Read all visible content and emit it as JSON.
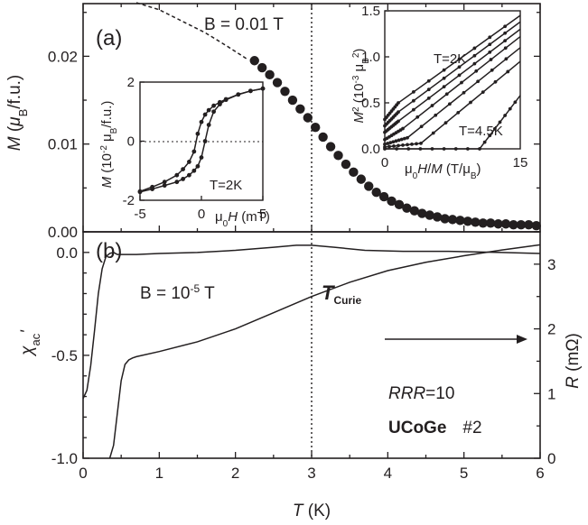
{
  "chart_data": [
    {
      "panel": "a",
      "type": "scatter",
      "panel_label": "(a)",
      "xlabel": "T (K)",
      "ylabel": "M (μB/f.u.)",
      "xlim": [
        0,
        6
      ],
      "ylim": [
        0,
        0.026
      ],
      "annotation": "B = 0.01 T",
      "x_ticks": [
        "0",
        "1",
        "2",
        "3",
        "4",
        "5",
        "6"
      ],
      "y_ticks": [
        "0.00",
        "0.01",
        "0.02"
      ],
      "y_tick_values": [
        0,
        0.01,
        0.02
      ],
      "dashed_extrapolation": {
        "x": [
          0.7,
          1.0,
          1.3,
          1.6,
          1.9,
          2.15
        ],
        "y": [
          0.0261,
          0.0253,
          0.024,
          0.0227,
          0.0211,
          0.0197
        ]
      },
      "x": [
        2.25,
        2.35,
        2.45,
        2.55,
        2.65,
        2.75,
        2.85,
        2.95,
        3.05,
        3.15,
        3.25,
        3.35,
        3.45,
        3.55,
        3.65,
        3.75,
        3.85,
        3.95,
        4.05,
        4.15,
        4.25,
        4.35,
        4.45,
        4.55,
        4.65,
        4.75,
        4.85,
        4.95,
        5.05,
        5.15,
        5.25,
        5.35,
        5.45,
        5.55,
        5.65,
        5.75,
        5.85,
        5.95
      ],
      "y": [
        0.0195,
        0.0187,
        0.0179,
        0.017,
        0.016,
        0.015,
        0.014,
        0.013,
        0.0119,
        0.0108,
        0.0097,
        0.0087,
        0.0077,
        0.0068,
        0.006,
        0.0052,
        0.0045,
        0.004,
        0.0035,
        0.0031,
        0.0027,
        0.0024,
        0.0021,
        0.0019,
        0.0017,
        0.0015,
        0.0014,
        0.0013,
        0.0012,
        0.0011,
        0.001,
        0.001,
        0.0009,
        0.0009,
        0.0008,
        0.0008,
        0.0008,
        0.0007
      ],
      "curie_line_x": 3.0
    },
    {
      "panel": "a-inset-left",
      "type": "line",
      "xlabel": "μ0H (mT)",
      "ylabel": "M (10⁻² μB/f.u.)",
      "xlim": [
        -5,
        5
      ],
      "ylim": [
        -2,
        2
      ],
      "x_ticks": [
        "-5",
        "0",
        "5"
      ],
      "y_ticks": [
        "-2",
        "0",
        "2"
      ],
      "annotation": "T=2K",
      "series": [
        {
          "x": [
            -5,
            -4,
            -3,
            -2,
            -1.5,
            -1,
            -0.6,
            -0.3,
            0,
            0.3,
            0.6,
            1,
            1.5,
            2,
            3,
            4,
            5
          ],
          "y": [
            -1.7,
            -1.55,
            -1.38,
            -1.15,
            -0.95,
            -0.7,
            -0.35,
            0.25,
            0.65,
            0.9,
            1.05,
            1.2,
            1.32,
            1.42,
            1.58,
            1.7,
            1.78
          ]
        },
        {
          "x": [
            5,
            4,
            3,
            2,
            1.5,
            1,
            0.6,
            0.3,
            0,
            -0.3,
            -0.6,
            -1,
            -1.5,
            -2,
            -3,
            -4,
            -5
          ],
          "y": [
            1.78,
            1.7,
            1.58,
            1.4,
            1.25,
            1.0,
            0.55,
            0.0,
            -0.55,
            -0.85,
            -1.0,
            -1.15,
            -1.28,
            -1.38,
            -1.5,
            -1.62,
            -1.72
          ]
        }
      ]
    },
    {
      "panel": "a-inset-right",
      "type": "line",
      "xlabel": "μ0H/M (T/μB)",
      "ylabel": "M² (10⁻³ μB²)",
      "xlim": [
        0,
        15
      ],
      "ylim": [
        0,
        1.5
      ],
      "x_ticks": [
        "0",
        "15"
      ],
      "y_ticks": [
        "0.0",
        "0.5",
        "1.0",
        "1.5"
      ],
      "annotations": [
        "T=2K",
        "T=4.5K"
      ],
      "series": [
        {
          "x": [
            0,
            1.5,
            15
          ],
          "y": [
            0.32,
            0.5,
            1.45
          ]
        },
        {
          "x": [
            0,
            1.5,
            15
          ],
          "y": [
            0.25,
            0.4,
            1.38
          ]
        },
        {
          "x": [
            0,
            1.5,
            15
          ],
          "y": [
            0.18,
            0.3,
            1.3
          ]
        },
        {
          "x": [
            0,
            2.0,
            15
          ],
          "y": [
            0.1,
            0.22,
            1.22
          ]
        },
        {
          "x": [
            0,
            2.5,
            15
          ],
          "y": [
            0.05,
            0.12,
            1.1
          ]
        },
        {
          "x": [
            0,
            4.0,
            15
          ],
          "y": [
            0.02,
            0.06,
            0.95
          ]
        },
        {
          "x": [
            0,
            10.5,
            15
          ],
          "y": [
            0.0,
            0.0,
            0.58
          ]
        }
      ]
    },
    {
      "panel": "b",
      "type": "line",
      "panel_label": "(b)",
      "xlabel": "T (K)",
      "ylabel_left": "χac'",
      "ylabel_right": "R (mΩ)",
      "xlim": [
        0,
        6
      ],
      "ylim_left": [
        -1.0,
        0.1
      ],
      "ylim_right": [
        0,
        3.5
      ],
      "x_ticks": [
        "0",
        "1",
        "2",
        "3",
        "4",
        "5",
        "6"
      ],
      "y_ticks_left": [
        "0.0",
        "-0.5",
        "-1.0"
      ],
      "y_ticks_right": [
        "0",
        "1",
        "2",
        "3"
      ],
      "annotation_field": "B = 10⁻⁵ T",
      "annotation_curie": "T",
      "annotation_curie_sub": "Curie",
      "annotation_rrr_label": "RRR",
      "annotation_rrr_value": "=10",
      "annotation_sample": "UCoGe",
      "annotation_sample_num": "#2",
      "curie_line_x": 3.0,
      "series": [
        {
          "name": "χac'",
          "axis": "left",
          "x": [
            0.0,
            0.05,
            0.1,
            0.15,
            0.2,
            0.25,
            0.3,
            0.35,
            0.4,
            0.45,
            0.5,
            0.7,
            1.0,
            1.5,
            2.0,
            2.5,
            2.8,
            3.0,
            3.3,
            3.7,
            4.2,
            4.8,
            5.5,
            6.0
          ],
          "y": [
            -0.71,
            -0.67,
            -0.55,
            -0.38,
            -0.2,
            -0.08,
            -0.02,
            -0.005,
            0.0,
            -0.01,
            -0.01,
            -0.01,
            -0.005,
            0.0,
            0.01,
            0.025,
            0.035,
            0.035,
            0.025,
            0.01,
            0.005,
            0.005,
            0.0,
            -0.005
          ]
        },
        {
          "name": "R",
          "axis": "right",
          "x": [
            0.35,
            0.4,
            0.45,
            0.5,
            0.55,
            0.6,
            0.65,
            0.7,
            1.0,
            1.5,
            2.0,
            2.5,
            3.0,
            3.5,
            4.0,
            4.5,
            5.0,
            5.5,
            6.0
          ],
          "y": [
            0.0,
            0.2,
            0.7,
            1.2,
            1.45,
            1.52,
            1.55,
            1.57,
            1.65,
            1.8,
            2.0,
            2.25,
            2.5,
            2.72,
            2.9,
            3.03,
            3.13,
            3.22,
            3.3
          ]
        }
      ]
    }
  ]
}
